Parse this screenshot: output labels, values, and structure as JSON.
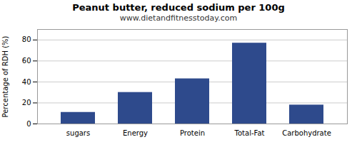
{
  "chart_data": {
    "type": "bar",
    "title": "Peanut butter, reduced sodium per 100g",
    "subtitle": "www.dietandfitnesstoday.com",
    "categories": [
      "sugars",
      "Energy",
      "Protein",
      "Total-Fat",
      "Carbohydrate"
    ],
    "values": [
      11,
      30,
      43,
      77,
      18
    ],
    "color": "#2e4a8c",
    "ylabel": "Percentage of RDH (%)",
    "ylim": [
      0,
      90
    ],
    "yticks": [
      0,
      20,
      40,
      60,
      80
    ],
    "grid": true
  }
}
